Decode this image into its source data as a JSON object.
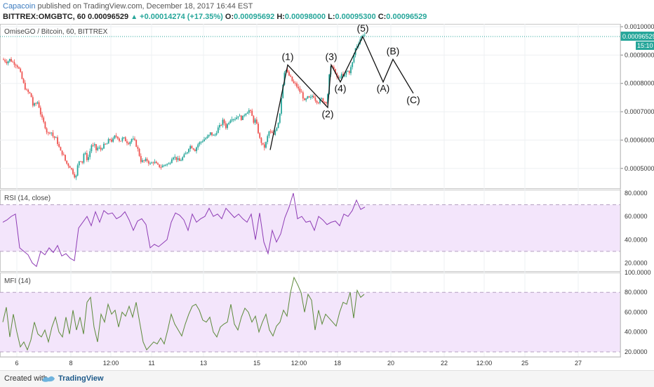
{
  "header": {
    "author": "Capacoin",
    "published_text": "published on TradingView.com, December 18, 2017 16:44 EST",
    "symbol_line": "BITTREX:OMGBTC, 60",
    "last": "0.00096529",
    "change": "+0.00014274 (+17.35%)",
    "open_label": "O:",
    "open": "0.00095692",
    "high_label": "H:",
    "high": "0.00098000",
    "low_label": "L:",
    "low": "0.00095300",
    "close_label": "C:",
    "close": "0.00096529"
  },
  "footer": {
    "created_with": "Created with",
    "brand": "TradingView"
  },
  "chart_data": [
    {
      "type": "candlestick",
      "title": "OmiseGO / Bitcoin, 60, BITTREX",
      "ylim": [
        0.00043,
        0.00101
      ],
      "y_ticks": [
        "0.00100000",
        "0.00090000",
        "0.00080000",
        "0.00070000",
        "0.00060000",
        "0.00050000"
      ],
      "current_price_tag": "0.00096529",
      "countdown_tag": "15:10",
      "x_tick_labels": [
        "6",
        "8",
        "12:00",
        "11",
        "13",
        "15",
        "12:00",
        "18",
        "20",
        "22",
        "12:00",
        "25",
        "27"
      ],
      "price_path_x": [
        0,
        6,
        10,
        14,
        20,
        24,
        28,
        33,
        40,
        43,
        50,
        55,
        60,
        64,
        68,
        72,
        76,
        82,
        86,
        90,
        96,
        100,
        104,
        107,
        110,
        113,
        116,
        119,
        121,
        123,
        125,
        127,
        129,
        131,
        133,
        136,
        139,
        143,
        148,
        152,
        156,
        160,
        164,
        167,
        170,
        173,
        176,
        180,
        184,
        188,
        192,
        197,
        201,
        205,
        210,
        215,
        220,
        226,
        231,
        237,
        242,
        247,
        252,
        257,
        262,
        266,
        270,
        274,
        278,
        283,
        288,
        292,
        296,
        300,
        303,
        306,
        310,
        314,
        318,
        322,
        326,
        330,
        333,
        336,
        339,
        342,
        345,
        348,
        351,
        354,
        357,
        360,
        363,
        366,
        369,
        372,
        375,
        379,
        383,
        386,
        389,
        392,
        395,
        398,
        402,
        406,
        410,
        414,
        418,
        422,
        426,
        430,
        434,
        438,
        442,
        446,
        450,
        454,
        458,
        462,
        466,
        470,
        474,
        478,
        482,
        486,
        490,
        494,
        498,
        502,
        506,
        510,
        514,
        517
      ],
      "price_path_y": [
        0.000885,
        0.000875,
        0.000885,
        0.000875,
        0.000865,
        0.000845,
        0.00081,
        0.000775,
        0.00076,
        0.00072,
        0.000735,
        0.00068,
        0.00065,
        0.00062,
        0.000635,
        0.00061,
        0.000605,
        0.00056,
        0.00055,
        0.00052,
        0.000505,
        0.000485,
        0.000465,
        0.000515,
        0.000535,
        0.00052,
        0.00056,
        0.00054,
        0.000525,
        0.000555,
        0.000565,
        0.00059,
        0.000575,
        0.00058,
        0.000565,
        0.000575,
        0.000565,
        0.00058,
        0.000585,
        0.000605,
        0.000595,
        0.000615,
        0.00061,
        0.000595,
        0.000605,
        0.000605,
        0.000595,
        0.00059,
        0.000605,
        0.000595,
        0.00057,
        0.000525,
        0.000525,
        0.00053,
        0.000515,
        0.000525,
        0.00051,
        0.000505,
        0.000515,
        0.000515,
        0.000545,
        0.000535,
        0.000525,
        0.00054,
        0.000555,
        0.00058,
        0.000575,
        0.000565,
        0.000585,
        0.000595,
        0.000605,
        0.00061,
        0.000625,
        0.000615,
        0.00062,
        0.00064,
        0.00065,
        0.00067,
        0.000645,
        0.000665,
        0.00068,
        0.000675,
        0.00068,
        0.00069,
        0.000675,
        0.00068,
        0.000695,
        0.0007,
        0.000705,
        0.000695,
        0.000665,
        0.00067,
        0.00064,
        0.000605,
        0.00059,
        0.00057,
        0.00059,
        0.00063,
        0.000625,
        0.000615,
        0.00064,
        0.000655,
        0.0007,
        0.000775,
        0.000855,
        0.000835,
        0.00082,
        0.0008,
        0.000795,
        0.000775,
        0.000765,
        0.000735,
        0.00075,
        0.000745,
        0.00076,
        0.00074,
        0.000735,
        0.000745,
        0.000735,
        0.000735,
        0.00085,
        0.000865,
        0.00083,
        0.000815,
        0.00083,
        0.00082,
        0.000845,
        0.00084,
        0.00087,
        0.00092,
        0.00094,
        0.00096,
        0.000975,
        0.00097
      ]
    },
    {
      "type": "line",
      "title": "RSI (14, close)",
      "ylim": [
        13,
        83
      ],
      "bands": [
        30,
        70
      ],
      "y_ticks": [
        "80.0000",
        "60.0000",
        "40.0000",
        "20.0000"
      ],
      "path_x": [
        0,
        6,
        12,
        18,
        24,
        30,
        36,
        42,
        48,
        54,
        60,
        66,
        72,
        78,
        84,
        90,
        96,
        102,
        108,
        114,
        120,
        126,
        132,
        138,
        144,
        150,
        156,
        162,
        168,
        174,
        180,
        186,
        192,
        198,
        204,
        210,
        216,
        222,
        228,
        234,
        240,
        246,
        252,
        258,
        264,
        270,
        276,
        282,
        288,
        294,
        300,
        306,
        312,
        318,
        324,
        330,
        336,
        342,
        348,
        354,
        360,
        366,
        372,
        378,
        384,
        390,
        396,
        402,
        408,
        414,
        420,
        426,
        432,
        438,
        444,
        450,
        456,
        462,
        468,
        474,
        480,
        486,
        492,
        498,
        504,
        510,
        516
      ],
      "path_y": [
        55,
        57,
        60,
        62,
        33,
        30,
        27,
        20,
        17,
        30,
        27,
        33,
        29,
        35,
        26,
        28,
        24,
        22,
        50,
        55,
        60,
        52,
        64,
        55,
        65,
        62,
        63,
        58,
        60,
        64,
        57,
        48,
        56,
        58,
        53,
        33,
        36,
        34,
        37,
        40,
        55,
        63,
        61,
        57,
        48,
        62,
        55,
        58,
        60,
        67,
        60,
        62,
        58,
        67,
        63,
        59,
        62,
        58,
        55,
        62,
        40,
        63,
        38,
        28,
        48,
        38,
        45,
        59,
        68,
        80,
        58,
        60,
        55,
        56,
        48,
        60,
        57,
        53,
        55,
        56,
        52,
        62,
        60,
        65,
        74,
        66,
        68
      ]
    },
    {
      "type": "line",
      "title": "MFI (14)",
      "ylim": [
        15,
        100
      ],
      "bands": [
        20,
        80
      ],
      "y_ticks": [
        "100.0000",
        "80.0000",
        "60.0000",
        "40.0000",
        "20.0000"
      ],
      "path_x": [
        0,
        5,
        10,
        15,
        20,
        25,
        30,
        35,
        40,
        45,
        50,
        55,
        60,
        65,
        70,
        75,
        80,
        85,
        90,
        95,
        100,
        105,
        110,
        115,
        120,
        125,
        130,
        135,
        140,
        145,
        150,
        155,
        160,
        165,
        170,
        175,
        180,
        185,
        190,
        195,
        200,
        205,
        210,
        215,
        220,
        225,
        230,
        235,
        240,
        245,
        250,
        255,
        260,
        265,
        270,
        275,
        280,
        285,
        290,
        295,
        300,
        305,
        310,
        315,
        320,
        325,
        330,
        335,
        340,
        345,
        350,
        355,
        360,
        365,
        370,
        375,
        380,
        385,
        390,
        395,
        400,
        405,
        410,
        415,
        420,
        425,
        430,
        435,
        440,
        445,
        450,
        455,
        460,
        465,
        470,
        475,
        480,
        485,
        490,
        495,
        500,
        505,
        510,
        515
      ],
      "path_y": [
        50,
        65,
        35,
        58,
        40,
        25,
        30,
        22,
        32,
        50,
        38,
        35,
        42,
        30,
        45,
        55,
        40,
        35,
        55,
        38,
        62,
        42,
        55,
        38,
        70,
        75,
        45,
        30,
        58,
        50,
        68,
        58,
        62,
        45,
        60,
        56,
        66,
        55,
        70,
        50,
        30,
        22,
        26,
        30,
        28,
        34,
        28,
        42,
        58,
        48,
        42,
        36,
        48,
        58,
        66,
        68,
        62,
        52,
        50,
        55,
        40,
        35,
        45,
        48,
        50,
        68,
        48,
        42,
        55,
        64,
        60,
        50,
        56,
        40,
        50,
        58,
        42,
        36,
        46,
        50,
        62,
        56,
        80,
        95,
        88,
        80,
        60,
        78,
        72,
        42,
        62,
        48,
        58,
        54,
        50,
        46,
        60,
        70,
        68,
        80,
        54,
        82,
        75,
        78
      ]
    }
  ],
  "waves": {
    "labels": [
      "(1)",
      "(2)",
      "(3)",
      "(4)",
      "(5)",
      "(A)",
      "(B)",
      "(C)"
    ],
    "x": [
      385,
      410,
      467,
      472,
      485,
      517,
      546,
      560,
      589
    ],
    "y": [
      0.000565,
      0.000865,
      0.000715,
      0.000865,
      0.000805,
      0.000965,
      0.000805,
      0.000885,
      0.000765
    ]
  }
}
